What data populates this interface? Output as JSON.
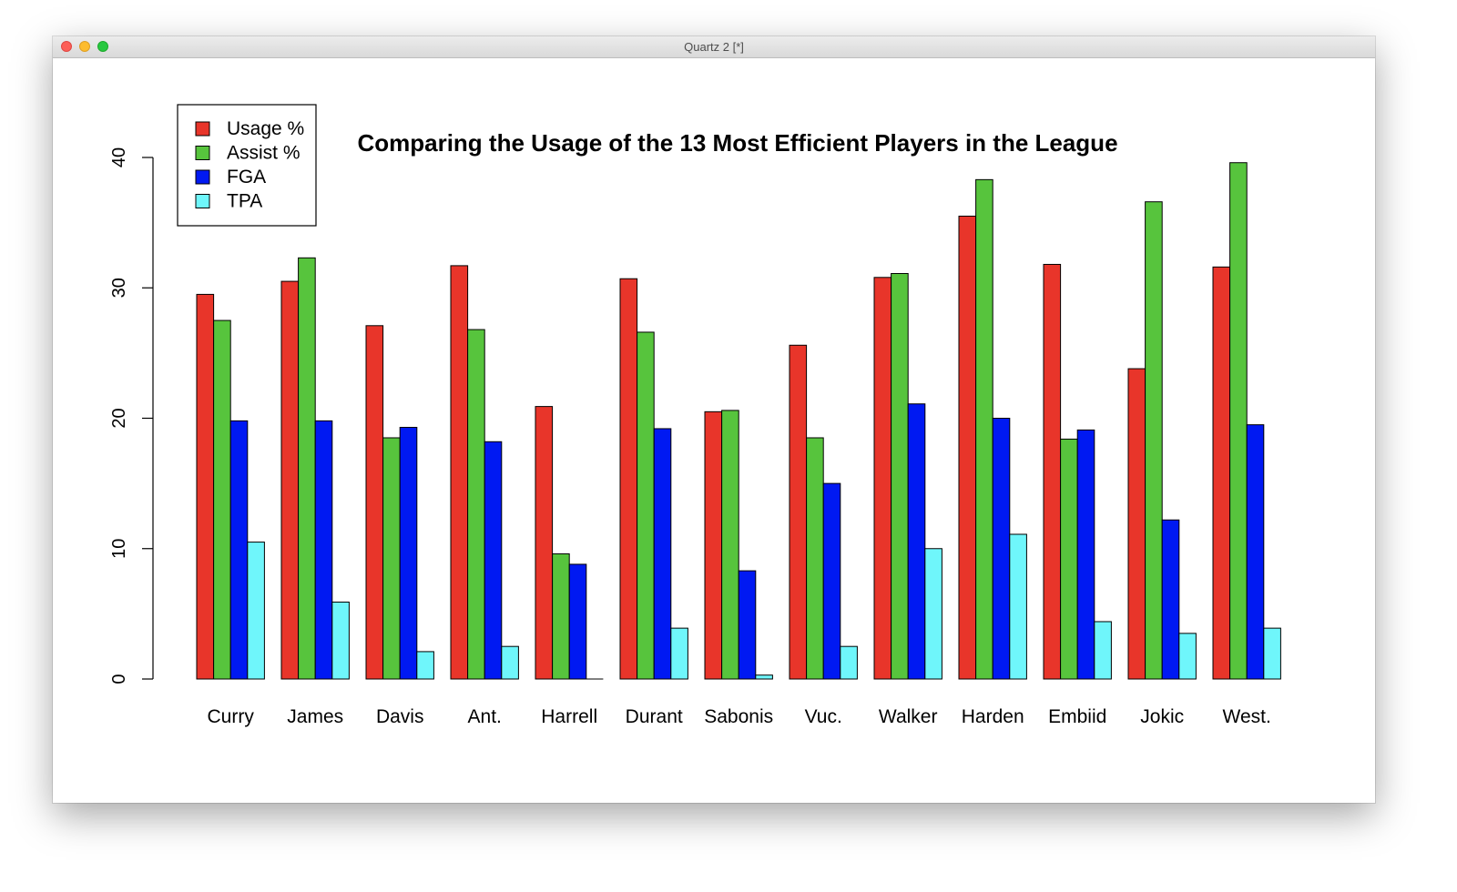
{
  "window": {
    "title": "Quartz 2 [*]"
  },
  "colors": {
    "Usage %": "#e8352a",
    "Assist %": "#57c43d",
    "FGA": "#0019f2",
    "TPA": "#6ff6fb"
  },
  "chart_data": {
    "type": "bar",
    "title": "Comparing the Usage of the 13 Most Efficient Players in the League",
    "xlabel": "",
    "ylabel": "",
    "ylim": [
      0,
      40
    ],
    "yticks": [
      0,
      10,
      20,
      30,
      40
    ],
    "grid": false,
    "legend_position": "top-left",
    "categories": [
      "Curry",
      "James",
      "Davis",
      "Ant.",
      "Harrell",
      "Durant",
      "Sabonis",
      "Vuc.",
      "Walker",
      "Harden",
      "Embiid",
      "Jokic",
      "West."
    ],
    "series": [
      {
        "name": "Usage %",
        "values": [
          29.5,
          30.5,
          27.1,
          31.7,
          20.9,
          30.7,
          20.5,
          25.6,
          30.8,
          35.5,
          31.8,
          23.8,
          31.6
        ]
      },
      {
        "name": "Assist %",
        "values": [
          27.5,
          32.3,
          18.5,
          26.8,
          9.6,
          26.6,
          20.6,
          18.5,
          31.1,
          38.3,
          18.4,
          36.6,
          39.6
        ]
      },
      {
        "name": "FGA",
        "values": [
          19.8,
          19.8,
          19.3,
          18.2,
          8.8,
          19.2,
          8.3,
          15.0,
          21.1,
          20.0,
          19.1,
          12.2,
          19.5
        ]
      },
      {
        "name": "TPA",
        "values": [
          10.5,
          5.9,
          2.1,
          2.5,
          0.0,
          3.9,
          0.3,
          2.5,
          10.0,
          11.1,
          4.4,
          3.5,
          3.9
        ]
      }
    ]
  }
}
